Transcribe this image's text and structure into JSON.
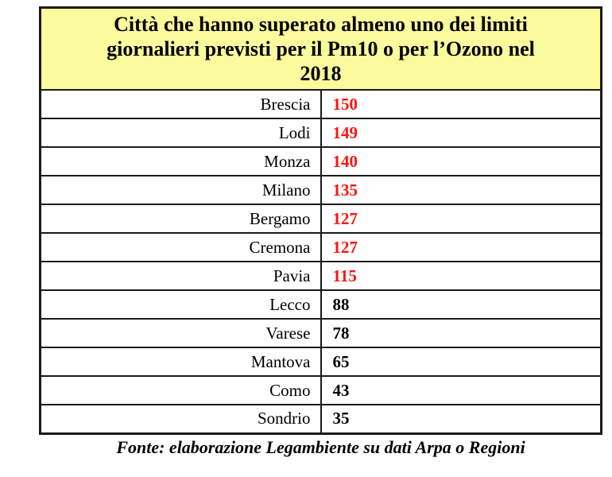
{
  "colors": {
    "header_bg": "#fbfa9c",
    "alert_value": "#fb1412",
    "text": "#000000",
    "border": "#1a1a1a"
  },
  "header": {
    "title_lines": [
      "Città che hanno superato almeno uno dei limiti",
      "giornalieri previsti per il Pm10 o per l’Ozono nel",
      "2018"
    ]
  },
  "table": {
    "rows": [
      {
        "city": "Brescia",
        "value": "150",
        "alert": true
      },
      {
        "city": "Lodi",
        "value": "149",
        "alert": true
      },
      {
        "city": "Monza",
        "value": "140",
        "alert": true
      },
      {
        "city": "Milano",
        "value": "135",
        "alert": true
      },
      {
        "city": "Bergamo",
        "value": "127",
        "alert": true
      },
      {
        "city": "Cremona",
        "value": "127",
        "alert": true
      },
      {
        "city": "Pavia",
        "value": "115",
        "alert": true
      },
      {
        "city": "Lecco",
        "value": "88",
        "alert": false
      },
      {
        "city": "Varese",
        "value": "78",
        "alert": false
      },
      {
        "city": "Mantova",
        "value": "65",
        "alert": false
      },
      {
        "city": "Como",
        "value": "43",
        "alert": false
      },
      {
        "city": "Sondrio",
        "value": "35",
        "alert": false
      }
    ]
  },
  "footer": {
    "text": "Fonte: elaborazione Legambiente su dati Arpa o Regioni"
  },
  "chart_data": {
    "type": "table",
    "title": "Città che hanno superato almeno uno dei limiti giornalieri previsti per il Pm10 o per l’Ozono nel 2018",
    "categories": [
      "Brescia",
      "Lodi",
      "Monza",
      "Milano",
      "Bergamo",
      "Cremona",
      "Pavia",
      "Lecco",
      "Varese",
      "Mantova",
      "Como",
      "Sondrio"
    ],
    "values": [
      150,
      149,
      140,
      135,
      127,
      127,
      115,
      88,
      78,
      65,
      43,
      35
    ],
    "annotations": [
      "values 115 and above shown in red"
    ],
    "source": "Fonte: elaborazione Legambiente su dati Arpa o Regioni"
  }
}
